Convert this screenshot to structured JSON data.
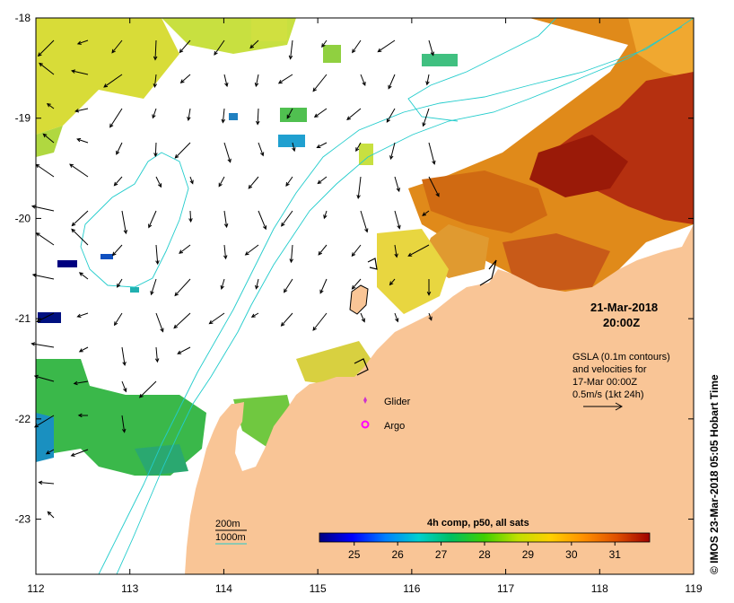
{
  "map": {
    "lon_ticks": [
      "112",
      "113",
      "114",
      "115",
      "116",
      "117",
      "118",
      "119"
    ],
    "lat_ticks": [
      "-18",
      "-19",
      "-20",
      "-21",
      "-22",
      "-23"
    ],
    "lon_range": [
      112,
      119
    ],
    "lat_range": [
      -23.55,
      -18
    ]
  },
  "timestamp": {
    "date": "21-Mar-2018",
    "time": "20:00Z"
  },
  "gsla": {
    "line1": "GSLA (0.1m contours)",
    "line2": "and velocities for",
    "line3": "17-Mar 00:00Z",
    "line4": "0.5m/s (1kt 24h)"
  },
  "markers": {
    "glider_label": "Glider",
    "argo_label": "Argo",
    "glider_color": "#cc33cc",
    "argo_color": "#ff00ff"
  },
  "isobaths": {
    "label_200": "200m",
    "label_1000": "1000m",
    "contour_color": "#22cccc"
  },
  "colorbar": {
    "title": "4h comp, p50, all sats",
    "ticks": [
      "25",
      "26",
      "27",
      "28",
      "29",
      "30",
      "31"
    ],
    "range": [
      24.2,
      31.8
    ],
    "colors": [
      "#00007f",
      "#0000ff",
      "#0080ff",
      "#00d0d0",
      "#00c060",
      "#40d000",
      "#c0e000",
      "#ffd000",
      "#ff9000",
      "#e05000",
      "#a00000"
    ]
  },
  "credit": "© IMOS 23-Mar-2018 05:05 Hobart Time",
  "colors": {
    "land": "#f9c596",
    "ocean": "#ffffff"
  }
}
